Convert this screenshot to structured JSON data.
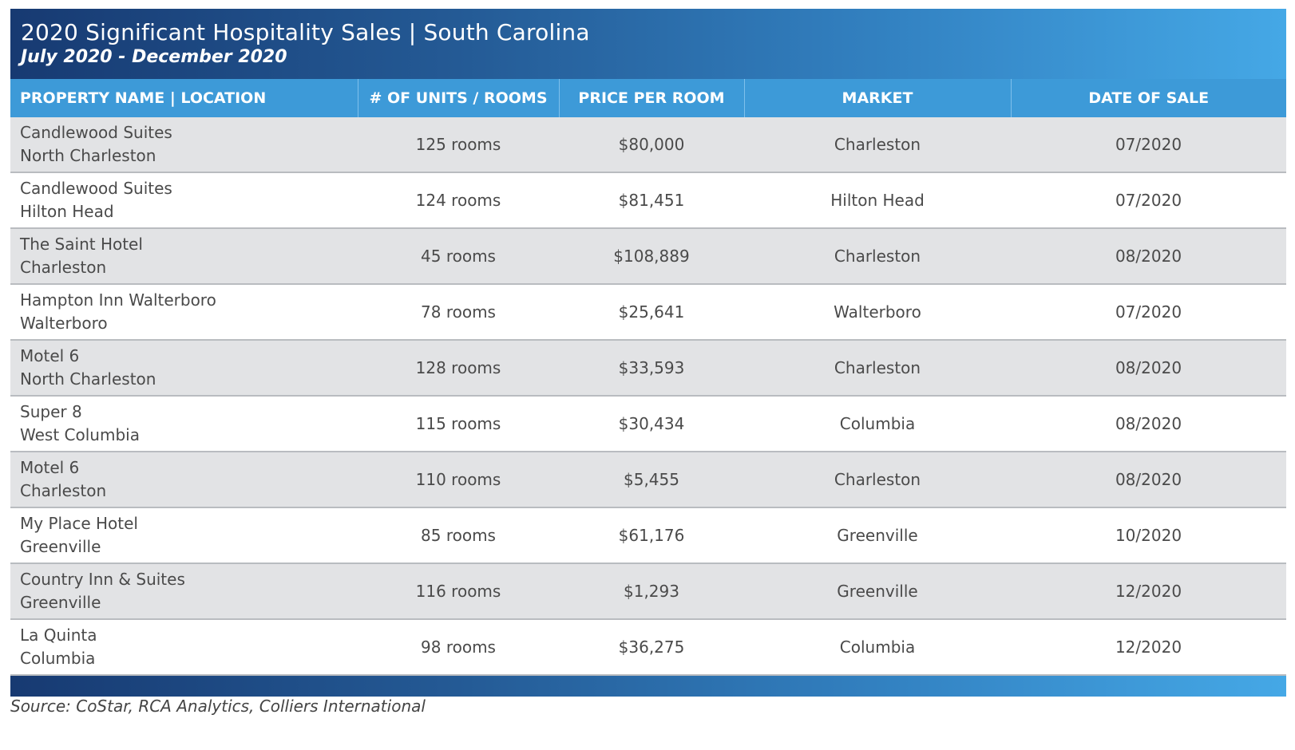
{
  "header": {
    "title": "2020 Significant Hospitality Sales | South Carolina",
    "subtitle": "July 2020 - December 2020"
  },
  "table": {
    "columns": [
      "PROPERTY NAME | LOCATION",
      "# OF UNITS / ROOMS",
      "PRICE PER ROOM",
      "MARKET",
      "DATE OF SALE"
    ],
    "rows": [
      {
        "name": "Candlewood Suites",
        "location": "North Charleston",
        "units": "125 rooms",
        "price": "$80,000",
        "market": "Charleston",
        "date": "07/2020"
      },
      {
        "name": "Candlewood Suites",
        "location": "Hilton Head",
        "units": "124 rooms",
        "price": "$81,451",
        "market": "Hilton Head",
        "date": "07/2020"
      },
      {
        "name": "The Saint Hotel",
        "location": "Charleston",
        "units": "45 rooms",
        "price": "$108,889",
        "market": "Charleston",
        "date": "08/2020"
      },
      {
        "name": "Hampton Inn Walterboro",
        "location": "Walterboro",
        "units": "78 rooms",
        "price": "$25,641",
        "market": "Walterboro",
        "date": "07/2020"
      },
      {
        "name": "Motel 6",
        "location": "North Charleston",
        "units": "128 rooms",
        "price": "$33,593",
        "market": "Charleston",
        "date": "08/2020"
      },
      {
        "name": "Super 8",
        "location": "West Columbia",
        "units": "115 rooms",
        "price": "$30,434",
        "market": "Columbia",
        "date": "08/2020"
      },
      {
        "name": "Motel 6",
        "location": "Charleston",
        "units": "110 rooms",
        "price": "$5,455",
        "market": "Charleston",
        "date": "08/2020"
      },
      {
        "name": "My Place Hotel",
        "location": "Greenville",
        "units": "85 rooms",
        "price": "$61,176",
        "market": "Greenville",
        "date": "10/2020"
      },
      {
        "name": "Country Inn & Suites",
        "location": "Greenville",
        "units": "116 rooms",
        "price": "$1,293",
        "market": "Greenville",
        "date": "12/2020"
      },
      {
        "name": "La Quinta",
        "location": "Columbia",
        "units": "98 rooms",
        "price": "$36,275",
        "market": "Columbia",
        "date": "12/2020"
      }
    ]
  },
  "footer": {
    "source": "Source: CoStar, RCA Analytics, Colliers International"
  }
}
